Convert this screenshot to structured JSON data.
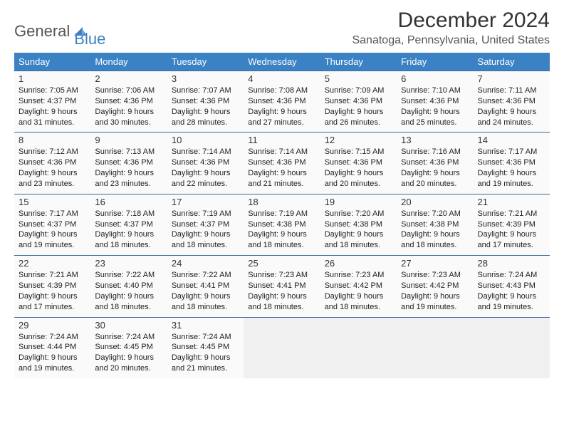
{
  "logo": {
    "part1": "General",
    "part2": "Blue"
  },
  "title": "December 2024",
  "location": "Sanatoga, Pennsylvania, United States",
  "colors": {
    "header_bg": "#3b82c4",
    "header_fg": "#ffffff",
    "row_divider": "#3b6a9a",
    "cell_bg": "#fafafa",
    "empty_bg": "#f0f0f0",
    "title_color": "#333333",
    "location_color": "#555555",
    "logo_gray": "#555555",
    "logo_blue": "#3b82c4"
  },
  "typography": {
    "title_fontsize": 30,
    "location_fontsize": 16,
    "weekday_fontsize": 13,
    "daynum_fontsize": 13,
    "cell_fontsize": 11
  },
  "weekdays": [
    "Sunday",
    "Monday",
    "Tuesday",
    "Wednesday",
    "Thursday",
    "Friday",
    "Saturday"
  ],
  "days": [
    {
      "n": 1,
      "sr": "7:05 AM",
      "ss": "4:37 PM",
      "dl": "9 hours and 31 minutes."
    },
    {
      "n": 2,
      "sr": "7:06 AM",
      "ss": "4:36 PM",
      "dl": "9 hours and 30 minutes."
    },
    {
      "n": 3,
      "sr": "7:07 AM",
      "ss": "4:36 PM",
      "dl": "9 hours and 28 minutes."
    },
    {
      "n": 4,
      "sr": "7:08 AM",
      "ss": "4:36 PM",
      "dl": "9 hours and 27 minutes."
    },
    {
      "n": 5,
      "sr": "7:09 AM",
      "ss": "4:36 PM",
      "dl": "9 hours and 26 minutes."
    },
    {
      "n": 6,
      "sr": "7:10 AM",
      "ss": "4:36 PM",
      "dl": "9 hours and 25 minutes."
    },
    {
      "n": 7,
      "sr": "7:11 AM",
      "ss": "4:36 PM",
      "dl": "9 hours and 24 minutes."
    },
    {
      "n": 8,
      "sr": "7:12 AM",
      "ss": "4:36 PM",
      "dl": "9 hours and 23 minutes."
    },
    {
      "n": 9,
      "sr": "7:13 AM",
      "ss": "4:36 PM",
      "dl": "9 hours and 23 minutes."
    },
    {
      "n": 10,
      "sr": "7:14 AM",
      "ss": "4:36 PM",
      "dl": "9 hours and 22 minutes."
    },
    {
      "n": 11,
      "sr": "7:14 AM",
      "ss": "4:36 PM",
      "dl": "9 hours and 21 minutes."
    },
    {
      "n": 12,
      "sr": "7:15 AM",
      "ss": "4:36 PM",
      "dl": "9 hours and 20 minutes."
    },
    {
      "n": 13,
      "sr": "7:16 AM",
      "ss": "4:36 PM",
      "dl": "9 hours and 20 minutes."
    },
    {
      "n": 14,
      "sr": "7:17 AM",
      "ss": "4:36 PM",
      "dl": "9 hours and 19 minutes."
    },
    {
      "n": 15,
      "sr": "7:17 AM",
      "ss": "4:37 PM",
      "dl": "9 hours and 19 minutes."
    },
    {
      "n": 16,
      "sr": "7:18 AM",
      "ss": "4:37 PM",
      "dl": "9 hours and 18 minutes."
    },
    {
      "n": 17,
      "sr": "7:19 AM",
      "ss": "4:37 PM",
      "dl": "9 hours and 18 minutes."
    },
    {
      "n": 18,
      "sr": "7:19 AM",
      "ss": "4:38 PM",
      "dl": "9 hours and 18 minutes."
    },
    {
      "n": 19,
      "sr": "7:20 AM",
      "ss": "4:38 PM",
      "dl": "9 hours and 18 minutes."
    },
    {
      "n": 20,
      "sr": "7:20 AM",
      "ss": "4:38 PM",
      "dl": "9 hours and 18 minutes."
    },
    {
      "n": 21,
      "sr": "7:21 AM",
      "ss": "4:39 PM",
      "dl": "9 hours and 17 minutes."
    },
    {
      "n": 22,
      "sr": "7:21 AM",
      "ss": "4:39 PM",
      "dl": "9 hours and 17 minutes."
    },
    {
      "n": 23,
      "sr": "7:22 AM",
      "ss": "4:40 PM",
      "dl": "9 hours and 18 minutes."
    },
    {
      "n": 24,
      "sr": "7:22 AM",
      "ss": "4:41 PM",
      "dl": "9 hours and 18 minutes."
    },
    {
      "n": 25,
      "sr": "7:23 AM",
      "ss": "4:41 PM",
      "dl": "9 hours and 18 minutes."
    },
    {
      "n": 26,
      "sr": "7:23 AM",
      "ss": "4:42 PM",
      "dl": "9 hours and 18 minutes."
    },
    {
      "n": 27,
      "sr": "7:23 AM",
      "ss": "4:42 PM",
      "dl": "9 hours and 19 minutes."
    },
    {
      "n": 28,
      "sr": "7:24 AM",
      "ss": "4:43 PM",
      "dl": "9 hours and 19 minutes."
    },
    {
      "n": 29,
      "sr": "7:24 AM",
      "ss": "4:44 PM",
      "dl": "9 hours and 19 minutes."
    },
    {
      "n": 30,
      "sr": "7:24 AM",
      "ss": "4:45 PM",
      "dl": "9 hours and 20 minutes."
    },
    {
      "n": 31,
      "sr": "7:24 AM",
      "ss": "4:45 PM",
      "dl": "9 hours and 21 minutes."
    }
  ],
  "labels": {
    "sunrise": "Sunrise: ",
    "sunset": "Sunset: ",
    "daylight": "Daylight: "
  },
  "grid": {
    "cols": 7,
    "rows": 5,
    "first_day_col": 0,
    "trailing_empty": 4
  }
}
